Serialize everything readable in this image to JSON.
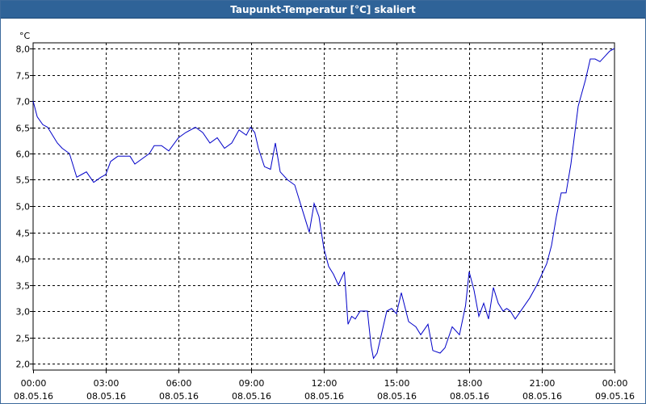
{
  "window": {
    "title": "Taupunkt-Temperatur [°C] skaliert"
  },
  "chart_data": {
    "type": "line",
    "title": "Taupunkt-Temperatur [°C] skaliert",
    "yunit": "°C",
    "ylim": [
      1.9,
      8.0
    ],
    "yticks": [
      "8,0",
      "7,5",
      "7,0",
      "6,5",
      "6,0",
      "5,5",
      "5,0",
      "4,5",
      "4,0",
      "3,5",
      "3,0",
      "2,5",
      "2,0"
    ],
    "ytick_values": [
      8.0,
      7.5,
      7.0,
      6.5,
      6.0,
      5.5,
      5.0,
      4.5,
      4.0,
      3.5,
      3.0,
      2.5,
      2.0
    ],
    "xlim": [
      0,
      24
    ],
    "xticks": [
      {
        "time": "00:00",
        "date": "08.05.16"
      },
      {
        "time": "03:00",
        "date": "08.05.16"
      },
      {
        "time": "06:00",
        "date": "08.05.16"
      },
      {
        "time": "09:00",
        "date": "08.05.16"
      },
      {
        "time": "12:00",
        "date": "08.05.16"
      },
      {
        "time": "15:00",
        "date": "08.05.16"
      },
      {
        "time": "18:00",
        "date": "08.05.16"
      },
      {
        "time": "21:00",
        "date": "08.05.16"
      },
      {
        "time": "00:00",
        "date": "09.05.16"
      }
    ],
    "grid": true,
    "series": [
      {
        "color": "#0000c8",
        "x": [
          0.0,
          0.17,
          0.4,
          0.6,
          0.8,
          1.0,
          1.2,
          1.5,
          1.8,
          2.0,
          2.2,
          2.5,
          2.8,
          3.0,
          3.2,
          3.5,
          3.8,
          4.0,
          4.2,
          4.5,
          4.8,
          5.0,
          5.3,
          5.6,
          6.0,
          6.3,
          6.7,
          7.0,
          7.3,
          7.6,
          7.9,
          8.2,
          8.5,
          8.8,
          8.97,
          9.15,
          9.3,
          9.55,
          9.8,
          10.0,
          10.2,
          10.5,
          10.8,
          11.1,
          11.4,
          11.6,
          11.8,
          12.0,
          12.2,
          12.4,
          12.6,
          12.85,
          13.0,
          13.15,
          13.3,
          13.5,
          13.8,
          13.95,
          14.05,
          14.2,
          14.45,
          14.6,
          14.8,
          15.0,
          15.2,
          15.5,
          15.8,
          16.0,
          16.3,
          16.5,
          16.8,
          17.0,
          17.3,
          17.6,
          17.85,
          18.0,
          18.2,
          18.4,
          18.6,
          18.8,
          19.0,
          19.2,
          19.4,
          19.55,
          19.7,
          19.9,
          20.2,
          20.5,
          20.8,
          21.0,
          21.2,
          21.4,
          21.6,
          21.8,
          22.0,
          22.2,
          22.5,
          22.8,
          23.0,
          23.2,
          23.4,
          23.6,
          23.8,
          24.0
        ],
        "values": [
          7.0,
          6.7,
          6.55,
          6.5,
          6.35,
          6.2,
          6.1,
          6.0,
          5.55,
          5.6,
          5.65,
          5.45,
          5.55,
          5.6,
          5.85,
          5.95,
          5.95,
          5.95,
          5.8,
          5.9,
          6.0,
          6.15,
          6.15,
          6.05,
          6.3,
          6.4,
          6.5,
          6.4,
          6.2,
          6.3,
          6.1,
          6.2,
          6.45,
          6.35,
          6.5,
          6.4,
          6.1,
          5.75,
          5.7,
          6.2,
          5.65,
          5.5,
          5.4,
          4.95,
          4.5,
          5.05,
          4.8,
          4.2,
          3.85,
          3.7,
          3.5,
          3.75,
          2.75,
          2.9,
          2.85,
          3.0,
          3.0,
          2.35,
          2.1,
          2.2,
          2.7,
          3.0,
          3.05,
          2.95,
          3.35,
          2.8,
          2.7,
          2.55,
          2.75,
          2.25,
          2.2,
          2.3,
          2.7,
          2.55,
          3.1,
          3.75,
          3.4,
          2.9,
          3.15,
          2.85,
          3.45,
          3.15,
          3.0,
          3.05,
          3.0,
          2.85,
          3.05,
          3.25,
          3.5,
          3.7,
          3.9,
          4.25,
          4.8,
          5.25,
          5.25,
          5.8,
          6.9,
          7.4,
          7.8,
          7.8,
          7.75,
          7.85,
          7.95,
          8.0
        ]
      }
    ]
  }
}
